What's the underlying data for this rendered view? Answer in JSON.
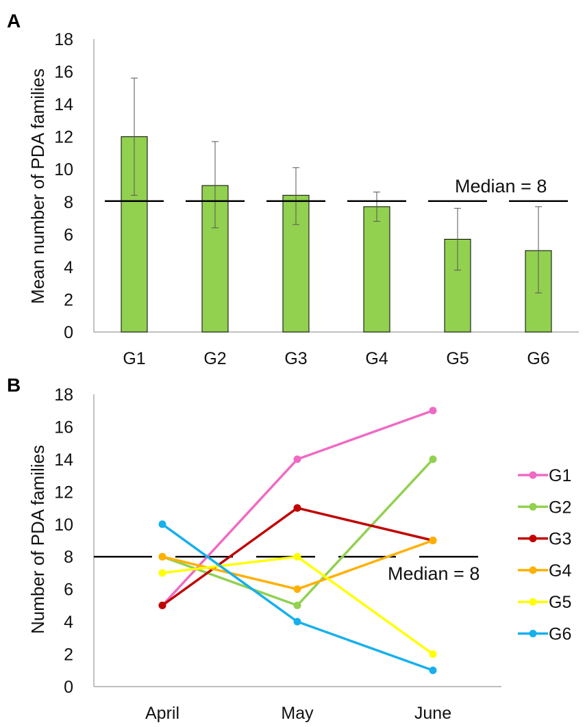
{
  "chart_data": [
    {
      "type": "bar",
      "panel": "A",
      "title": "",
      "xlabel": "",
      "ylabel": "Mean number of PDA families",
      "ylim": [
        0,
        18
      ],
      "yticks": [
        0,
        2,
        4,
        6,
        8,
        10,
        12,
        14,
        16,
        18
      ],
      "grid": false,
      "categories": [
        "G1",
        "G2",
        "G3",
        "G4",
        "G5",
        "G6"
      ],
      "values": [
        12.0,
        9.0,
        8.4,
        7.7,
        5.7,
        5.0
      ],
      "error_low": [
        8.4,
        6.4,
        6.6,
        6.8,
        3.8,
        2.4
      ],
      "error_high": [
        15.6,
        11.7,
        10.1,
        8.6,
        7.6,
        7.7
      ],
      "bar_color": "#92d050",
      "median": {
        "value": 8,
        "label": "Median = 8"
      }
    },
    {
      "type": "line",
      "panel": "B",
      "title": "",
      "xlabel": "",
      "ylabel": "Number of PDA families",
      "ylim": [
        0,
        18
      ],
      "yticks": [
        0,
        2,
        4,
        6,
        8,
        10,
        12,
        14,
        16,
        18
      ],
      "grid": false,
      "legend_position": "right",
      "x": [
        "April",
        "May",
        "June"
      ],
      "series": [
        {
          "name": "G1",
          "color": "#f06ac4",
          "values": [
            5,
            14,
            17
          ]
        },
        {
          "name": "G2",
          "color": "#92d050",
          "values": [
            8,
            5,
            14
          ]
        },
        {
          "name": "G3",
          "color": "#c00000",
          "values": [
            5,
            11,
            9
          ]
        },
        {
          "name": "G4",
          "color": "#ffb000",
          "values": [
            8,
            6,
            9
          ]
        },
        {
          "name": "G5",
          "color": "#ffff00",
          "values": [
            7,
            8,
            2
          ]
        },
        {
          "name": "G6",
          "color": "#16b0ec",
          "values": [
            10,
            4,
            1
          ]
        }
      ],
      "median": {
        "value": 8,
        "label": "Median = 8"
      }
    }
  ]
}
